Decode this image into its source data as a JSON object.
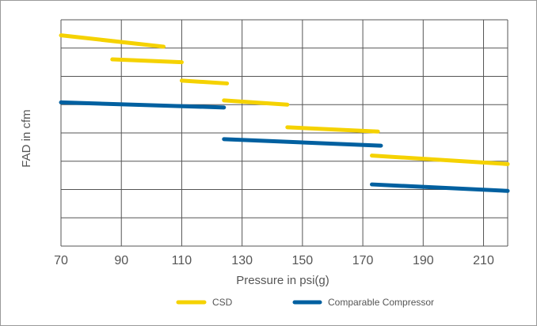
{
  "chart_data": {
    "type": "line",
    "xlabel": "Pressure in psi(g)",
    "ylabel": "FAD in cfm",
    "xlim": [
      70,
      218
    ],
    "x_ticks": [
      70,
      90,
      110,
      130,
      150,
      170,
      190,
      210
    ],
    "y_grid_count": 7,
    "ylim": [
      0,
      8
    ],
    "grid": true,
    "legend_position": "bottom",
    "series": [
      {
        "name": "CSD",
        "color": "#f5d200",
        "segments": [
          [
            [
              70,
              7.45
            ],
            [
              104,
              7.05
            ]
          ],
          [
            [
              87,
              6.6
            ],
            [
              110,
              6.5
            ]
          ],
          [
            [
              110,
              5.85
            ],
            [
              125,
              5.75
            ]
          ],
          [
            [
              124,
              5.15
            ],
            [
              145,
              5.0
            ]
          ],
          [
            [
              145,
              4.2
            ],
            [
              175,
              4.05
            ]
          ],
          [
            [
              173,
              3.2
            ],
            [
              218,
              2.9
            ]
          ]
        ]
      },
      {
        "name": "Comparable Compressor",
        "color": "#0060a0",
        "segments": [
          [
            [
              70,
              5.08
            ],
            [
              124,
              4.9
            ]
          ],
          [
            [
              124,
              3.78
            ],
            [
              176,
              3.55
            ]
          ],
          [
            [
              173,
              2.18
            ],
            [
              218,
              1.95
            ]
          ]
        ]
      }
    ]
  }
}
